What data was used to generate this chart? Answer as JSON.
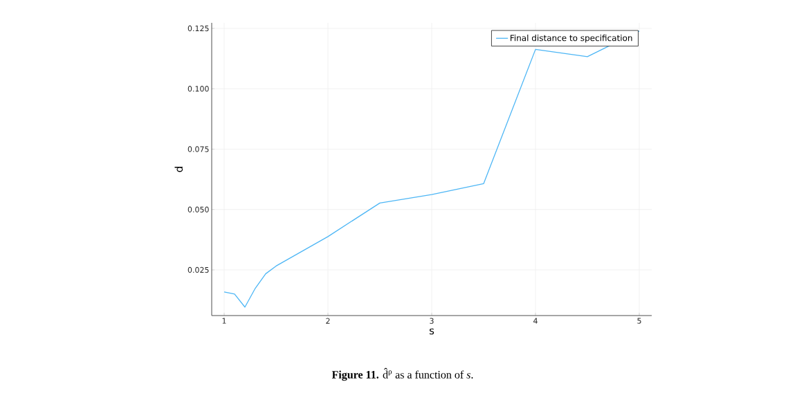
{
  "chart_data": {
    "type": "line",
    "xlabel": "s",
    "ylabel": "d",
    "x": [
      1,
      1.1,
      1.2,
      1.3,
      1.4,
      1.5,
      2,
      2.5,
      3,
      3.5,
      4,
      4.5,
      5
    ],
    "series": [
      {
        "name": "Final distance to specification",
        "color": "#4db6f5",
        "values": [
          0.0159,
          0.015,
          0.0096,
          0.0174,
          0.0234,
          0.0266,
          0.0388,
          0.0527,
          0.0562,
          0.0607,
          0.1163,
          0.1133,
          0.1239
        ]
      }
    ],
    "xlim": [
      0.88,
      5.12
    ],
    "ylim": [
      0.0061,
      0.1273
    ],
    "xticks": [
      1,
      2,
      3,
      4,
      5
    ],
    "yticks": [
      {
        "value": 0.025,
        "label": "0.025"
      },
      {
        "value": 0.05,
        "label": "0.050"
      },
      {
        "value": 0.075,
        "label": "0.075"
      },
      {
        "value": 0.1,
        "label": "0.100"
      },
      {
        "value": 0.125,
        "label": "0.125"
      }
    ],
    "grid": true,
    "legend": "top right",
    "marker": "none",
    "line_style": "solid",
    "annotations": [
      "**Figure 11.** d̂$^{ρ}$ as a function of *s*."
    ]
  }
}
